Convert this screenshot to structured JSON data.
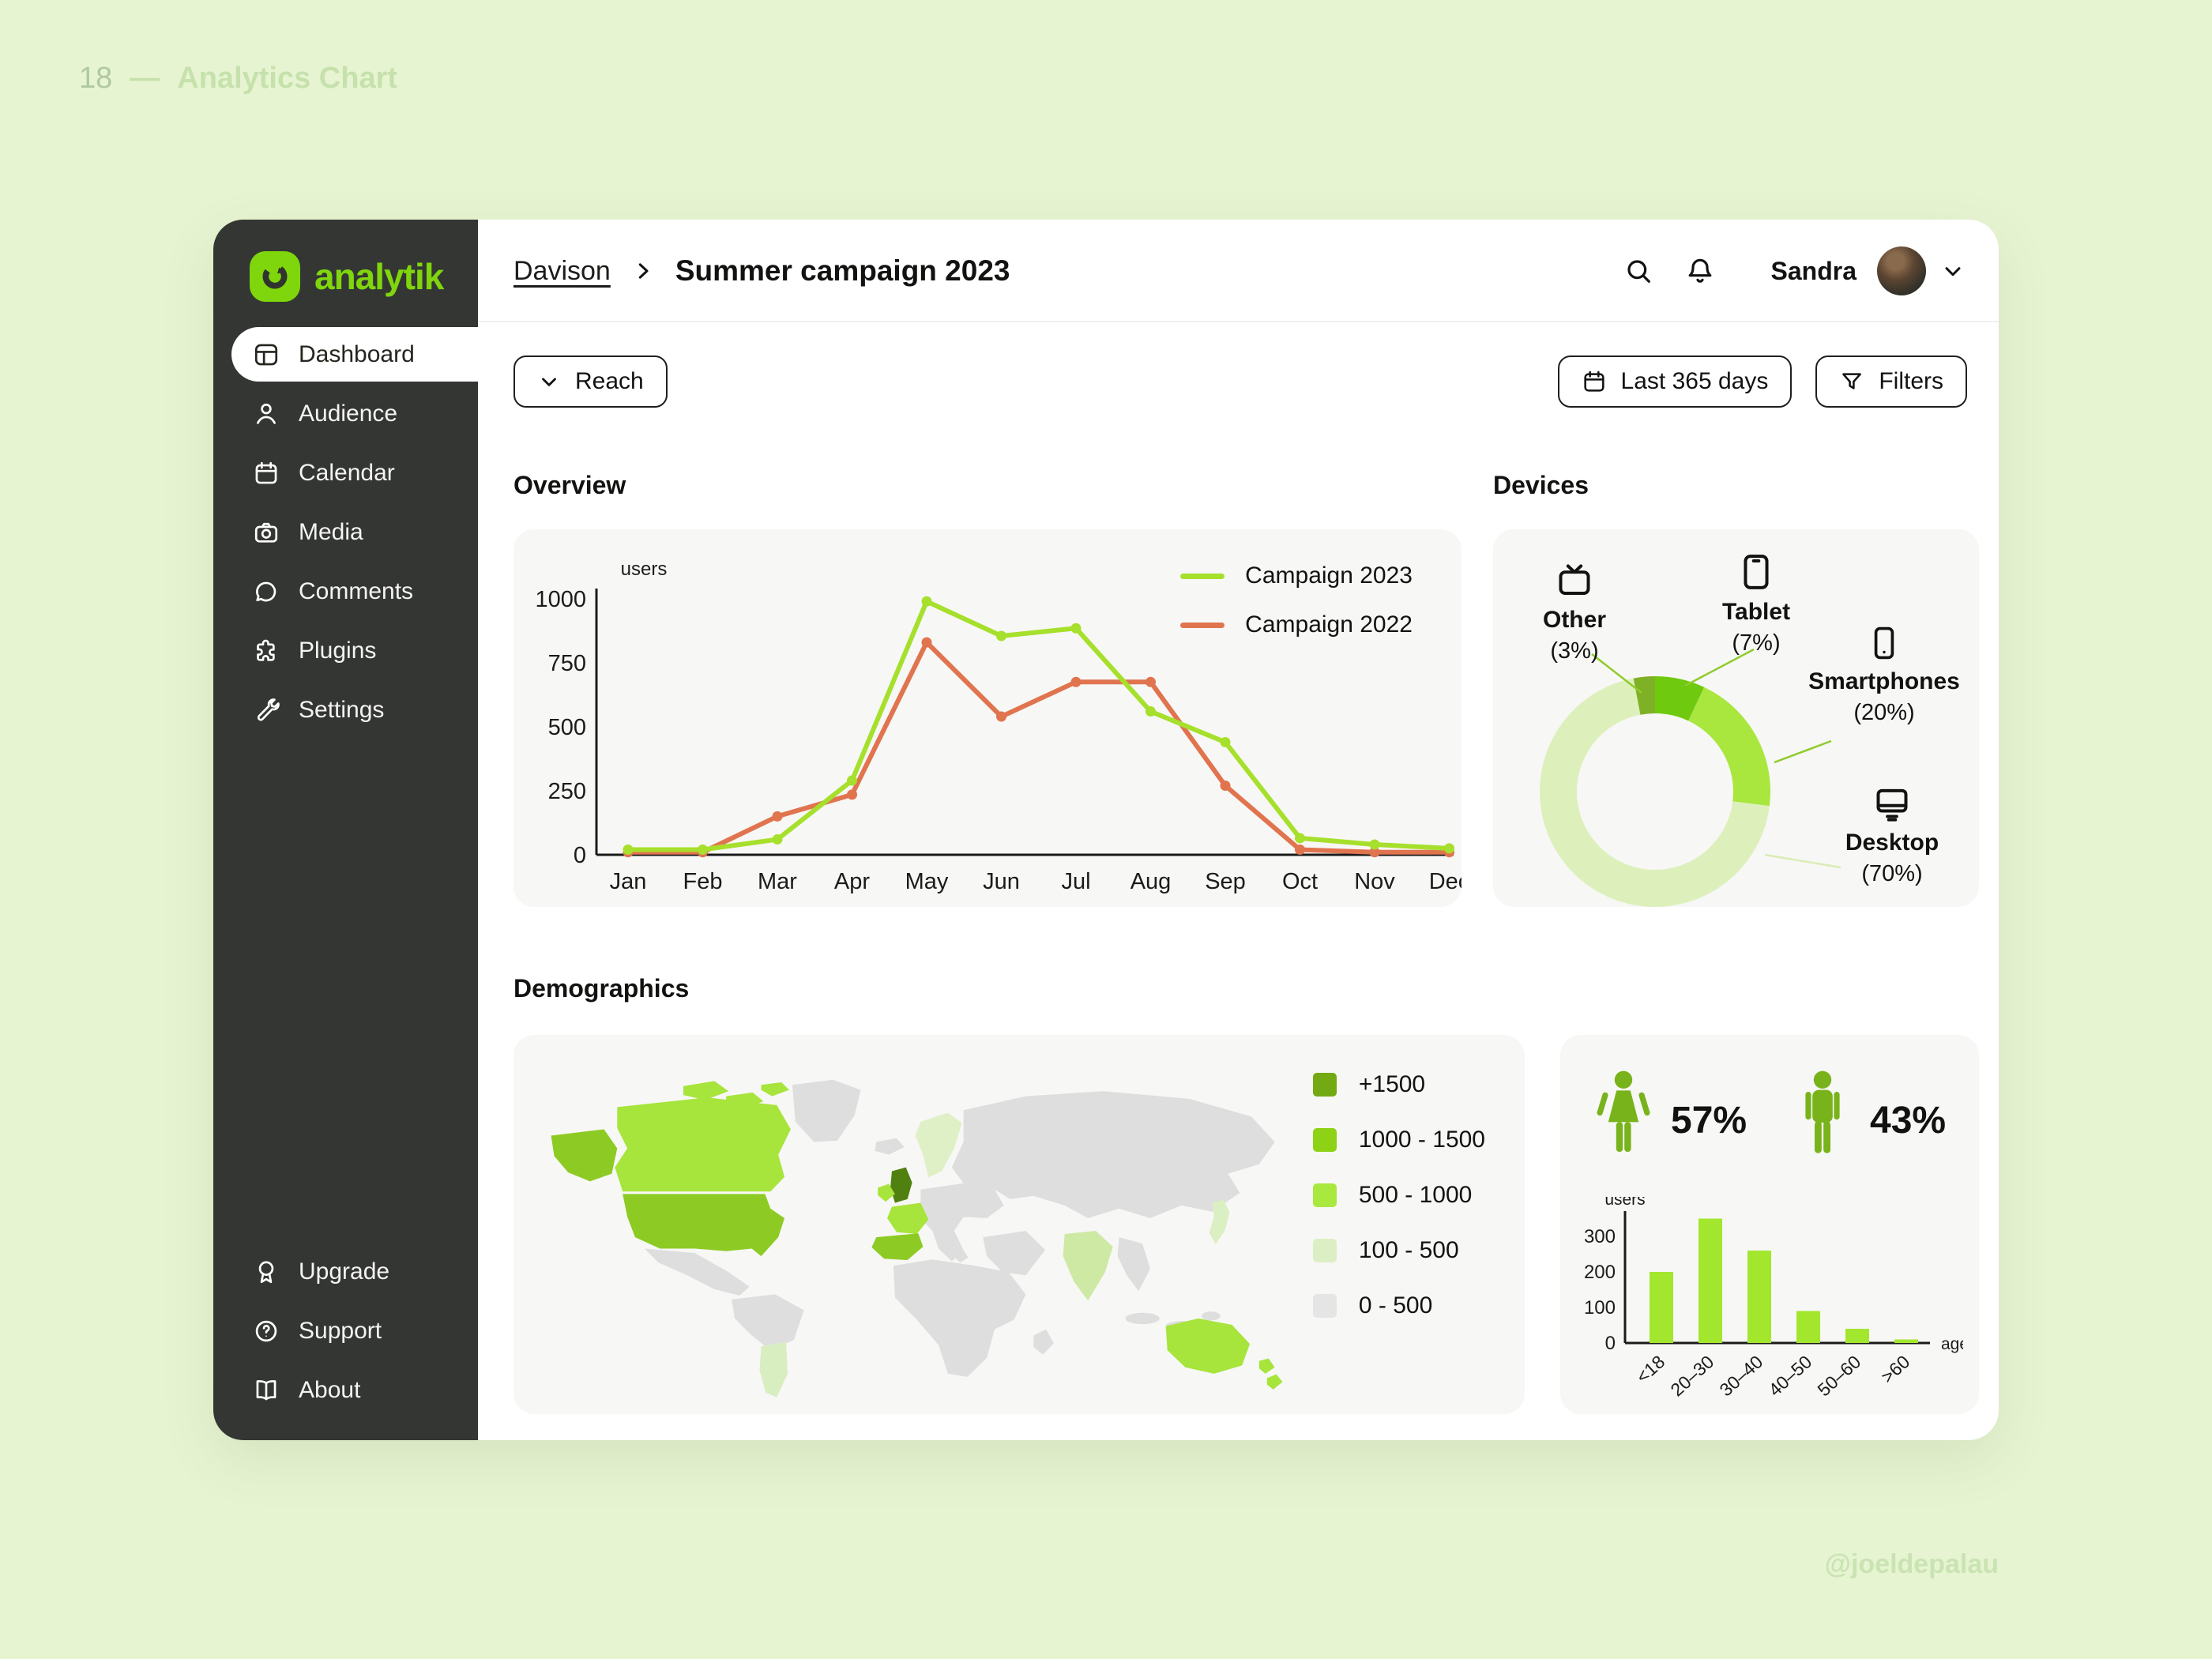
{
  "page": {
    "slide_number": "18",
    "slide_divider": "—",
    "slide_title": "Analytics Chart",
    "watermark": "@joeldepalau",
    "background": "#E7F4D2"
  },
  "sidebar": {
    "logo_text": "analytik",
    "accent_color": "#7FD60C",
    "items": [
      {
        "label": "Dashboard",
        "active": true
      },
      {
        "label": "Audience",
        "active": false
      },
      {
        "label": "Calendar",
        "active": false
      },
      {
        "label": "Media",
        "active": false
      },
      {
        "label": "Comments",
        "active": false
      },
      {
        "label": "Plugins",
        "active": false
      },
      {
        "label": "Settings",
        "active": false
      }
    ],
    "footer_items": [
      {
        "label": "Upgrade"
      },
      {
        "label": "Support"
      },
      {
        "label": "About"
      }
    ]
  },
  "header": {
    "breadcrumb_link": "Davison",
    "title": "Summer campaign 2023",
    "user_name": "Sandra"
  },
  "toolbar": {
    "metric_button": "Reach",
    "date_button": "Last 365 days",
    "filters_button": "Filters"
  },
  "overview": {
    "heading": "Overview",
    "chart_data": {
      "type": "line",
      "y_axis_label": "users",
      "yticks": [
        0,
        250,
        500,
        750,
        1000
      ],
      "ylim": [
        0,
        1000
      ],
      "categories": [
        "Jan",
        "Feb",
        "Mar",
        "Apr",
        "May",
        "Jun",
        "Jul",
        "Aug",
        "Sep",
        "Oct",
        "Nov",
        "Dec"
      ],
      "series": [
        {
          "name": "Campaign 2023",
          "color": "#A6E02C",
          "values": [
            20,
            20,
            60,
            290,
            990,
            855,
            885,
            560,
            440,
            65,
            40,
            25
          ]
        },
        {
          "name": "Campaign 2022",
          "color": "#E0744E",
          "values": [
            10,
            10,
            150,
            235,
            830,
            540,
            675,
            675,
            270,
            20,
            10,
            10
          ]
        }
      ],
      "legend_position": "top-right",
      "grid": false
    }
  },
  "devices": {
    "heading": "Devices",
    "chart_data": {
      "type": "pie",
      "labels": [
        "Tablet",
        "Smartphones",
        "Desktop",
        "Other"
      ],
      "values": [
        7,
        20,
        70,
        3
      ],
      "colors": [
        "#6FC90F",
        "#A9E63E",
        "#DDF0BC",
        "#7FB127"
      ]
    },
    "callouts": {
      "other": {
        "label": "Other",
        "pct": "(3%)"
      },
      "tablet": {
        "label": "Tablet",
        "pct": "(7%)"
      },
      "smartphones": {
        "label": "Smartphones",
        "pct": "(20%)"
      },
      "desktop": {
        "label": "Desktop",
        "pct": "(70%)"
      }
    },
    "connector_color": "#8FCB2C",
    "connector_color_pale": "#D9EDB6"
  },
  "demographics": {
    "heading": "Demographics",
    "map_legend": [
      {
        "label": "+1500",
        "color": "#73A912"
      },
      {
        "label": "1000 - 1500",
        "color": "#8DD214"
      },
      {
        "label": "500 - 1000",
        "color": "#A9E83E"
      },
      {
        "label": "100 - 500",
        "color": "#DCEFC4"
      },
      {
        "label": "0 - 500",
        "color": "#E5E5E5"
      }
    ],
    "map_default_fill": "#DEDEDE",
    "map_regions": {
      "canada": "#A7E43C",
      "arctic1": "#A7E43C",
      "arctic2": "#A7E43C",
      "arctic3": "#A7E43C",
      "alaska": "#8DCB24",
      "usa": "#8DCB24",
      "uk": "#50800F",
      "ireland": "#A7E43C",
      "france": "#A7E43C",
      "spain": "#8DCB24",
      "scandinavia": "#DFF0C6",
      "india": "#CDE9A4",
      "argentina": "#D8EEC0",
      "australia": "#A7E43C",
      "new_zealand1": "#A7E43C",
      "new_zealand2": "#A7E43C",
      "japan": "#DAEFC2"
    },
    "gender": {
      "female_pct": "57%",
      "male_pct": "43%",
      "icon_color": "#79B31B"
    },
    "age_chart": {
      "type": "bar",
      "y_axis_label": "users",
      "x_axis_label": "age",
      "yticks": [
        0,
        100,
        200,
        300
      ],
      "categories": [
        "<18",
        "20–30",
        "30–40",
        "40–50",
        "50–60",
        ">60"
      ],
      "values": [
        200,
        350,
        260,
        90,
        40,
        10
      ],
      "bar_color": "#A3E62E"
    }
  }
}
